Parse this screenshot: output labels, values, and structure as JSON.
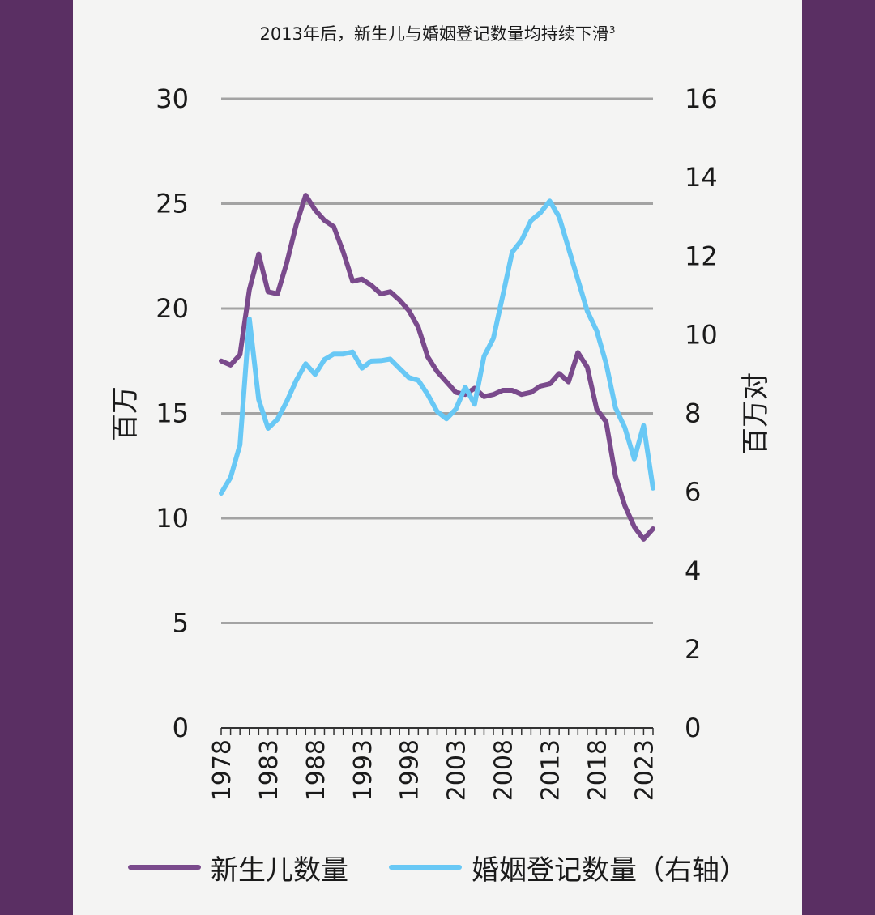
{
  "colors": {
    "frame": "#5a2f63",
    "panel": "#f4f4f3",
    "grid": "#a3a3a3",
    "births": "#7a4a8c",
    "marriages": "#68c8f5"
  },
  "chart_data": {
    "type": "line",
    "title": "2013年后，新生儿与婚姻登记数量均持续下滑",
    "title_sup": "3",
    "ylabel_left": "百万",
    "ylabel_right": "百万对",
    "ylim_left": [
      0,
      30
    ],
    "ylim_right": [
      0,
      16
    ],
    "yticks_left": [
      "0",
      "5",
      "10",
      "15",
      "20",
      "25",
      "30"
    ],
    "yticks_right": [
      "0",
      "2",
      "4",
      "6",
      "8",
      "10",
      "12",
      "14",
      "16"
    ],
    "xticks": [
      "1978",
      "1983",
      "1988",
      "1993",
      "1998",
      "2003",
      "2008",
      "2013",
      "2018",
      "2023"
    ],
    "grid": "horizontal",
    "legend_position": "bottom",
    "x": [
      1978,
      1979,
      1980,
      1981,
      1982,
      1983,
      1984,
      1985,
      1986,
      1987,
      1988,
      1989,
      1990,
      1991,
      1992,
      1993,
      1994,
      1995,
      1996,
      1997,
      1998,
      1999,
      2000,
      2001,
      2002,
      2003,
      2004,
      2005,
      2006,
      2007,
      2008,
      2009,
      2010,
      2011,
      2012,
      2013,
      2014,
      2015,
      2016,
      2017,
      2018,
      2019,
      2020,
      2021,
      2022,
      2023,
      2024
    ],
    "series": [
      {
        "name": "新生儿数量",
        "axis": "left",
        "values": [
          17.5,
          17.3,
          17.8,
          20.9,
          22.6,
          20.8,
          20.7,
          22.2,
          24.0,
          25.4,
          24.7,
          24.2,
          23.9,
          22.7,
          21.3,
          21.4,
          21.1,
          20.7,
          20.8,
          20.4,
          19.9,
          19.1,
          17.7,
          17.0,
          16.5,
          16.0,
          15.9,
          16.2,
          15.8,
          15.9,
          16.1,
          16.1,
          15.9,
          16.0,
          16.3,
          16.4,
          16.9,
          16.5,
          17.9,
          17.2,
          15.2,
          14.6,
          12.0,
          10.6,
          9.6,
          9.0,
          9.5
        ]
      },
      {
        "name": "婚姻登记数量（右轴）",
        "axis": "right",
        "values": [
          5.97,
          6.37,
          7.2,
          10.4,
          8.35,
          7.62,
          7.85,
          8.31,
          8.84,
          9.26,
          8.99,
          9.37,
          9.51,
          9.51,
          9.56,
          9.15,
          9.33,
          9.34,
          9.38,
          9.14,
          8.91,
          8.84,
          8.48,
          8.05,
          7.86,
          8.11,
          8.67,
          8.23,
          9.45,
          9.91,
          11.0,
          12.1,
          12.4,
          12.9,
          13.1,
          13.4,
          13.0,
          12.2,
          11.4,
          10.6,
          10.1,
          9.27,
          8.14,
          7.64,
          6.84,
          7.69,
          6.1
        ]
      }
    ]
  }
}
